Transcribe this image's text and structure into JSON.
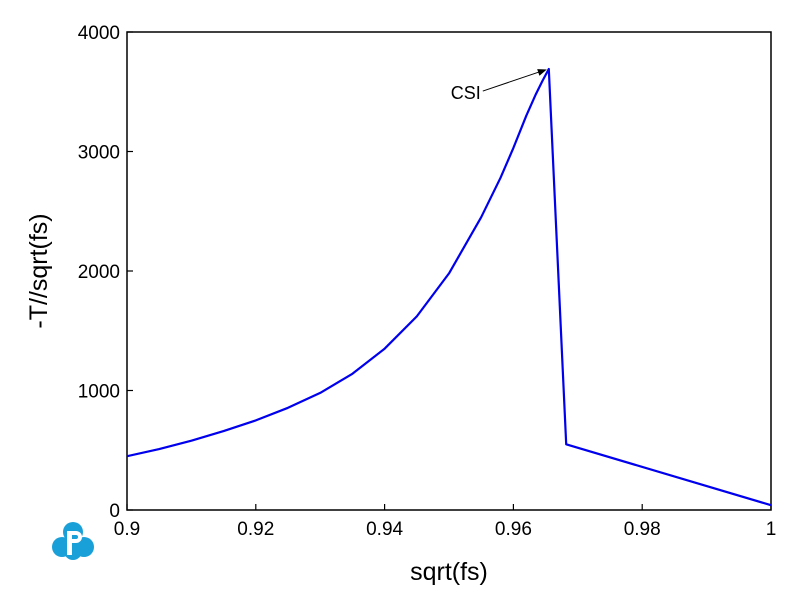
{
  "chart_data": {
    "type": "line",
    "title": "",
    "xlabel": "sqrt(fs)",
    "ylabel": "-T//sqrt(fs)",
    "xlim": [
      0.9,
      1.0
    ],
    "ylim": [
      0,
      4000
    ],
    "xticks": [
      0.9,
      0.92,
      0.94,
      0.96,
      0.98,
      1.0
    ],
    "xtick_labels": [
      "0.9",
      "0.92",
      "0.94",
      "0.96",
      "0.98",
      "1"
    ],
    "yticks": [
      0,
      1000,
      2000,
      3000,
      4000
    ],
    "ytick_labels": [
      "0",
      "1000",
      "2000",
      "3000",
      "4000"
    ],
    "grid": false,
    "line_color": "#0000ee",
    "series": [
      {
        "x": [
          0.9,
          0.905,
          0.91,
          0.915,
          0.92,
          0.925,
          0.93,
          0.935,
          0.94,
          0.945,
          0.95,
          0.955,
          0.958,
          0.96,
          0.962,
          0.9635,
          0.9645,
          0.9655,
          0.9682,
          1.0
        ],
        "y": [
          450,
          510,
          580,
          660,
          750,
          855,
          980,
          1140,
          1350,
          1620,
          1980,
          2450,
          2780,
          3030,
          3300,
          3480,
          3590,
          3690,
          550,
          40
        ]
      }
    ],
    "annotations": [
      {
        "text": "CSI",
        "x": 0.9655,
        "y": 3690
      }
    ]
  },
  "logo": {
    "name": "pandat-logo-icon",
    "color": "#1aa0d8"
  }
}
